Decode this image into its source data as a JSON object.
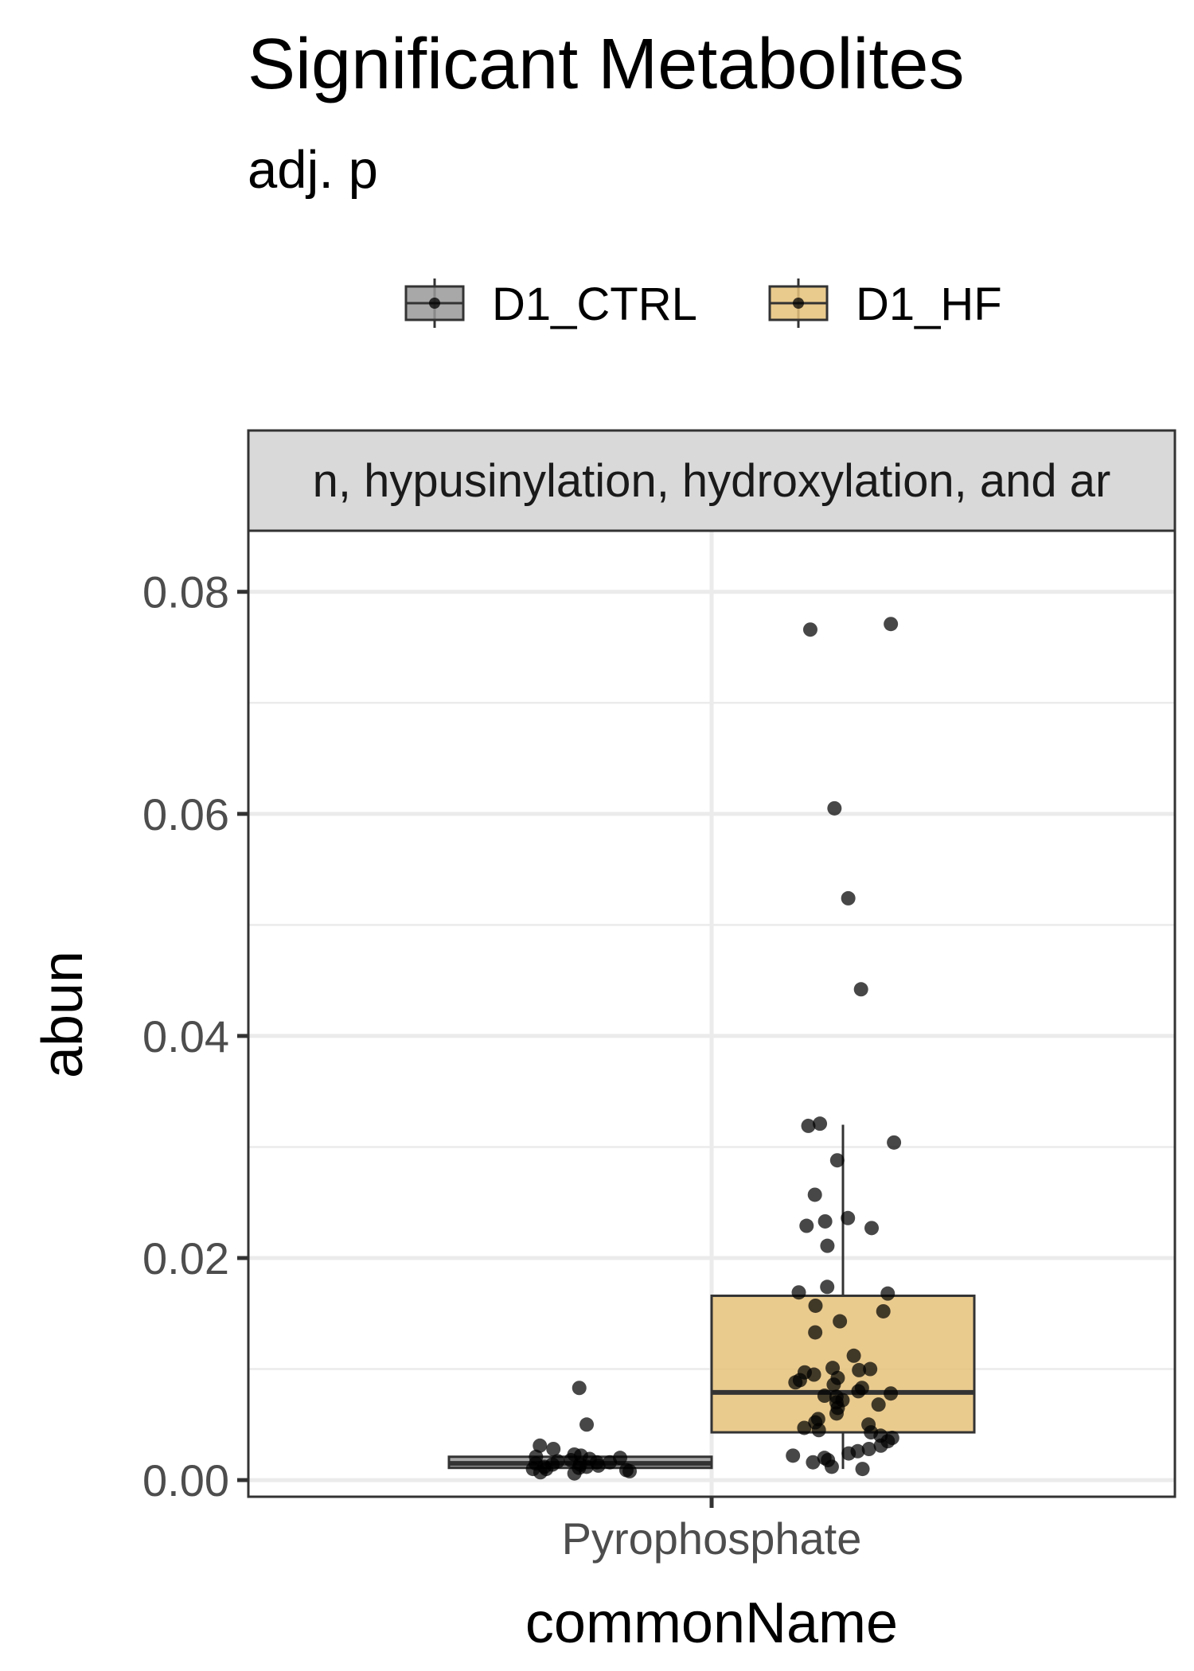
{
  "chart_data": {
    "type": "box",
    "title": "Significant Metabolites",
    "subtitle": "adj. p",
    "facet_label": "n, hypusinylation, hydroxylation, and ar",
    "xlabel": "commonName",
    "ylabel": "abun",
    "categories": [
      "Pyrophosphate"
    ],
    "ylim": [
      -0.0015,
      0.0855
    ],
    "yticks": [
      0.0,
      0.02,
      0.04,
      0.06,
      0.08
    ],
    "ytick_labels": [
      "0.00",
      "0.02",
      "0.04",
      "0.06",
      "0.08"
    ],
    "grid": true,
    "legend_position": "top",
    "series": [
      {
        "name": "D1_CTRL",
        "color": "#999999",
        "box": {
          "q1": 0.0011,
          "median": 0.0015,
          "q3": 0.0021,
          "whisker_low": 0.0006,
          "whisker_high": 0.0021
        },
        "points": [
          0.0083,
          0.005,
          0.0031,
          0.0028,
          0.0023,
          0.0022,
          0.0021,
          0.002,
          0.0019,
          0.0018,
          0.0017,
          0.0016,
          0.0016,
          0.0015,
          0.0014,
          0.0014,
          0.0013,
          0.0012,
          0.0012,
          0.0011,
          0.001,
          0.001,
          0.0009,
          0.0008,
          0.0007,
          0.0006
        ]
      },
      {
        "name": "D1_HF",
        "color": "#E6C27A",
        "box": {
          "q1": 0.0043,
          "median": 0.0079,
          "q3": 0.0166,
          "whisker_low": 0.001,
          "whisker_high": 0.032
        },
        "points": [
          0.0771,
          0.0766,
          0.0605,
          0.0524,
          0.0442,
          0.0321,
          0.0319,
          0.0304,
          0.0288,
          0.0257,
          0.0236,
          0.0233,
          0.0229,
          0.0227,
          0.0211,
          0.0174,
          0.0169,
          0.0168,
          0.0157,
          0.0152,
          0.0143,
          0.0133,
          0.0112,
          0.0101,
          0.01,
          0.0099,
          0.0097,
          0.0095,
          0.0092,
          0.009,
          0.0088,
          0.0086,
          0.0083,
          0.008,
          0.0078,
          0.0076,
          0.0075,
          0.0072,
          0.007,
          0.0068,
          0.0065,
          0.006,
          0.0055,
          0.0052,
          0.005,
          0.0047,
          0.0045,
          0.0043,
          0.004,
          0.0038,
          0.0035,
          0.0031,
          0.0028,
          0.0026,
          0.0024,
          0.0022,
          0.002,
          0.0018,
          0.0016,
          0.0012,
          0.001
        ]
      }
    ]
  }
}
